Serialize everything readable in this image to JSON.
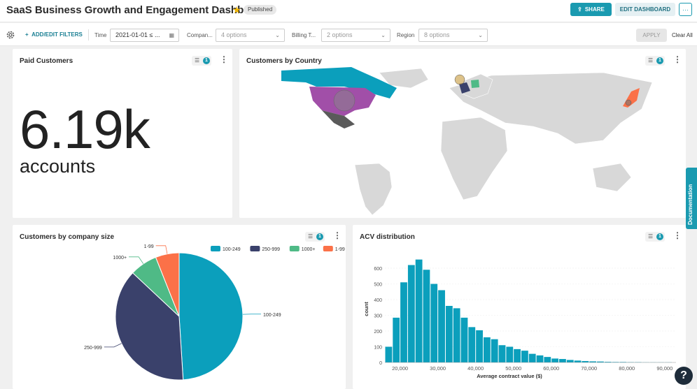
{
  "header": {
    "title": "SaaS Business Growth and Engagement Dashboard",
    "status_badge": "Published",
    "share_label": "SHARE",
    "edit_label": "EDIT DASHBOARD",
    "more_label": "···"
  },
  "filterbar": {
    "add_filters_label": "ADD/EDIT FILTERS",
    "time_label": "Time",
    "time_value": "2021-01-01 ≤ ...",
    "company_label": "Compan...",
    "company_placeholder": "4 options",
    "billing_label": "Billing T...",
    "billing_placeholder": "2 options",
    "region_label": "Region",
    "region_placeholder": "8 options",
    "apply_label": "APPLY",
    "clear_label": "Clear All"
  },
  "cards": {
    "paid_customers": {
      "title": "Paid Customers",
      "value": "6.19k",
      "unit": "accounts",
      "filter_count": "1"
    },
    "customers_by_country": {
      "title": "Customers by Country",
      "filter_count": "1"
    },
    "company_size": {
      "title": "Customers by company size",
      "filter_count": "1"
    },
    "acv": {
      "title": "ACV distribution",
      "filter_count": "1"
    }
  },
  "documentation_label": "Documentation",
  "help_label": "?",
  "colors": {
    "teal": "#0b9fbc",
    "navy": "#3a416b",
    "green": "#4fba86",
    "orange": "#fb7148",
    "purple": "#a14fa8",
    "gray_dark": "#5a5a5a",
    "land": "#d8d8d8"
  },
  "chart_data": [
    {
      "type": "pie",
      "title": "Customers by company size",
      "legend": [
        "100-249",
        "250-999",
        "1000+",
        "1-99"
      ],
      "legend_position": "top-right",
      "categories": [
        "100-249",
        "250-999",
        "1000+",
        "1-99"
      ],
      "values": [
        49,
        38,
        7,
        6
      ],
      "colors": [
        "#0b9fbc",
        "#3a416b",
        "#4fba86",
        "#fb7148"
      ]
    },
    {
      "type": "bar",
      "title": "ACV distribution",
      "xlabel": "Average contract value ($)",
      "ylabel": "count",
      "x_ticks": [
        "20,000",
        "30,000",
        "40,000",
        "50,000",
        "60,000",
        "70,000",
        "80,000",
        "90,000"
      ],
      "y_ticks": [
        0,
        100,
        200,
        300,
        400,
        500,
        600
      ],
      "xlim": [
        16000,
        93000
      ],
      "ylim": [
        0,
        680
      ],
      "bin_width": 2000,
      "bin_starts": [
        16000,
        18000,
        20000,
        22000,
        24000,
        26000,
        28000,
        30000,
        32000,
        34000,
        36000,
        38000,
        40000,
        42000,
        44000,
        46000,
        48000,
        50000,
        52000,
        54000,
        56000,
        58000,
        60000,
        62000,
        64000,
        66000,
        68000,
        70000,
        72000,
        74000,
        76000,
        78000,
        80000,
        82000,
        84000,
        86000,
        88000,
        90000
      ],
      "values": [
        100,
        285,
        510,
        620,
        655,
        590,
        500,
        460,
        360,
        345,
        285,
        225,
        205,
        160,
        148,
        110,
        100,
        85,
        75,
        55,
        45,
        35,
        25,
        22,
        16,
        12,
        9,
        7,
        6,
        4,
        3,
        3,
        2,
        2,
        1,
        1,
        1,
        1
      ]
    }
  ]
}
